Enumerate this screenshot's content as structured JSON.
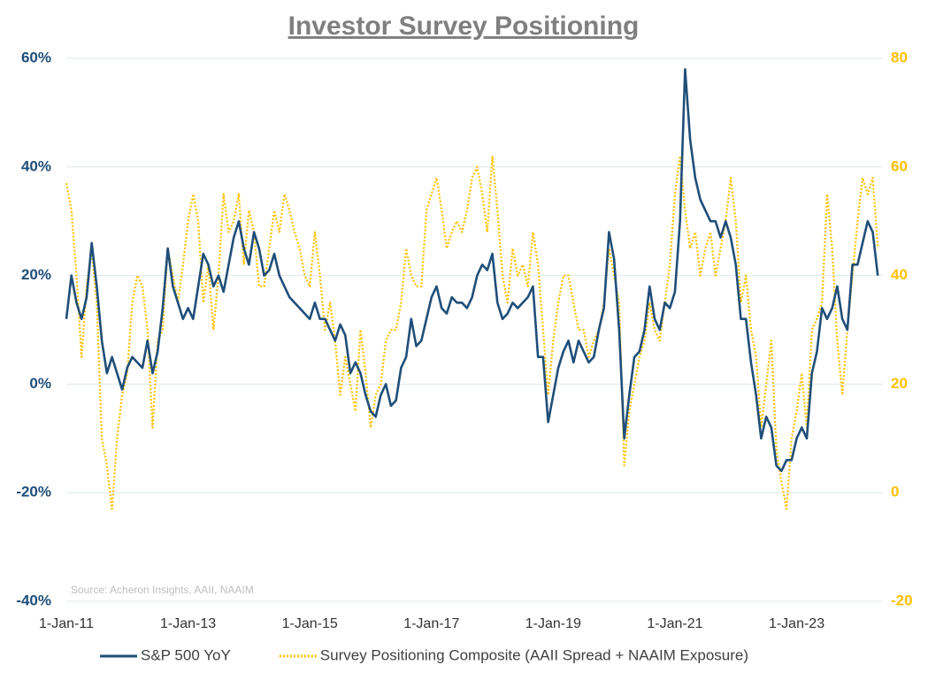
{
  "chart_data": {
    "type": "line",
    "title": "Investor Survey Positioning",
    "source": "Source: Acheron Insights, AAII, NAAIM",
    "x": [
      "2011-01-01",
      "2011-02-01",
      "2011-03-01",
      "2011-04-01",
      "2011-05-01",
      "2011-06-01",
      "2011-07-01",
      "2011-08-01",
      "2011-09-01",
      "2011-10-01",
      "2011-11-01",
      "2011-12-01",
      "2012-01-01",
      "2012-02-01",
      "2012-03-01",
      "2012-04-01",
      "2012-05-01",
      "2012-06-01",
      "2012-07-01",
      "2012-08-01",
      "2012-09-01",
      "2012-10-01",
      "2012-11-01",
      "2012-12-01",
      "2013-01-01",
      "2013-02-01",
      "2013-03-01",
      "2013-04-01",
      "2013-05-01",
      "2013-06-01",
      "2013-07-01",
      "2013-08-01",
      "2013-09-01",
      "2013-10-01",
      "2013-11-01",
      "2013-12-01",
      "2014-01-01",
      "2014-02-01",
      "2014-03-01",
      "2014-04-01",
      "2014-05-01",
      "2014-06-01",
      "2014-07-01",
      "2014-08-01",
      "2014-09-01",
      "2014-10-01",
      "2014-11-01",
      "2014-12-01",
      "2015-01-01",
      "2015-02-01",
      "2015-03-01",
      "2015-04-01",
      "2015-05-01",
      "2015-06-01",
      "2015-07-01",
      "2015-08-01",
      "2015-09-01",
      "2015-10-01",
      "2015-11-01",
      "2015-12-01",
      "2016-01-01",
      "2016-02-01",
      "2016-03-01",
      "2016-04-01",
      "2016-05-01",
      "2016-06-01",
      "2016-07-01",
      "2016-08-01",
      "2016-09-01",
      "2016-10-01",
      "2016-11-01",
      "2016-12-01",
      "2017-01-01",
      "2017-02-01",
      "2017-03-01",
      "2017-04-01",
      "2017-05-01",
      "2017-06-01",
      "2017-07-01",
      "2017-08-01",
      "2017-09-01",
      "2017-10-01",
      "2017-11-01",
      "2017-12-01",
      "2018-01-01",
      "2018-02-01",
      "2018-03-01",
      "2018-04-01",
      "2018-05-01",
      "2018-06-01",
      "2018-07-01",
      "2018-08-01",
      "2018-09-01",
      "2018-10-01",
      "2018-11-01",
      "2018-12-01",
      "2019-01-01",
      "2019-02-01",
      "2019-03-01",
      "2019-04-01",
      "2019-05-01",
      "2019-06-01",
      "2019-07-01",
      "2019-08-01",
      "2019-09-01",
      "2019-10-01",
      "2019-11-01",
      "2019-12-01",
      "2020-01-01",
      "2020-02-01",
      "2020-03-01",
      "2020-04-01",
      "2020-05-01",
      "2020-06-01",
      "2020-07-01",
      "2020-08-01",
      "2020-09-01",
      "2020-10-01",
      "2020-11-01",
      "2020-12-01",
      "2021-01-01",
      "2021-02-01",
      "2021-03-01",
      "2021-04-01",
      "2021-05-01",
      "2021-06-01",
      "2021-07-01",
      "2021-08-01",
      "2021-09-01",
      "2021-10-01",
      "2021-11-01",
      "2021-12-01",
      "2022-01-01",
      "2022-02-01",
      "2022-03-01",
      "2022-04-01",
      "2022-05-01",
      "2022-06-01",
      "2022-07-01",
      "2022-08-01",
      "2022-09-01",
      "2022-10-01",
      "2022-11-01",
      "2022-12-01",
      "2023-01-01",
      "2023-02-01",
      "2023-03-01",
      "2023-04-01",
      "2023-05-01",
      "2023-06-01",
      "2023-07-01",
      "2023-08-01",
      "2023-09-01",
      "2023-10-01",
      "2023-11-01",
      "2023-12-01",
      "2024-01-01",
      "2024-02-01",
      "2024-03-01",
      "2024-04-01",
      "2024-05-01"
    ],
    "xlim": [
      "2011-01-01",
      "2024-06-01"
    ],
    "xticks": [
      {
        "value": "2011-01-01",
        "label": "1-Jan-11"
      },
      {
        "value": "2013-01-01",
        "label": "1-Jan-13"
      },
      {
        "value": "2015-01-01",
        "label": "1-Jan-15"
      },
      {
        "value": "2017-01-01",
        "label": "1-Jan-17"
      },
      {
        "value": "2019-01-01",
        "label": "1-Jan-19"
      },
      {
        "value": "2021-01-01",
        "label": "1-Jan-21"
      },
      {
        "value": "2023-01-01",
        "label": "1-Jan-23"
      }
    ],
    "ylim": [
      -40,
      60
    ],
    "yticks": [
      {
        "value": -40,
        "label": "-40%"
      },
      {
        "value": -20,
        "label": "-20%"
      },
      {
        "value": 0,
        "label": "0%"
      },
      {
        "value": 20,
        "label": "20%"
      },
      {
        "value": 40,
        "label": "40%"
      },
      {
        "value": 60,
        "label": "60%"
      }
    ],
    "y2lim": [
      -20,
      80
    ],
    "y2ticks": [
      -20,
      0,
      20,
      40,
      60,
      80
    ],
    "grid": true,
    "series": [
      {
        "name": "S&P 500 YoY",
        "color": "#1f4e79",
        "style": "solid",
        "values": [
          12,
          20,
          15,
          12,
          16,
          26,
          18,
          8,
          2,
          5,
          2,
          -1,
          3,
          5,
          4,
          3,
          8,
          2,
          6,
          14,
          25,
          18,
          15,
          12,
          14,
          12,
          18,
          24,
          22,
          18,
          20,
          17,
          22,
          27,
          30,
          25,
          22,
          28,
          25,
          20,
          21,
          24,
          20,
          18,
          16,
          15,
          14,
          13,
          12,
          15,
          12,
          12,
          10,
          8,
          11,
          9,
          2,
          4,
          2,
          -2,
          -5,
          -6,
          -2,
          0,
          -4,
          -3,
          3,
          5,
          12,
          7,
          8,
          12,
          16,
          18,
          14,
          13,
          16,
          15,
          15,
          14,
          16,
          20,
          22,
          21,
          24,
          15,
          12,
          13,
          15,
          14,
          15,
          16,
          18,
          5,
          5,
          -7,
          -2,
          3,
          6,
          8,
          4,
          8,
          6,
          4,
          5,
          10,
          14,
          28,
          23,
          10,
          -10,
          -2,
          5,
          6,
          10,
          18,
          12,
          10,
          15,
          14,
          17,
          30,
          58,
          45,
          38,
          34,
          32,
          30,
          30,
          27,
          30,
          27,
          22,
          12,
          12,
          4,
          -2,
          -10,
          -6,
          -8,
          -15,
          -16,
          -14,
          -14,
          -10,
          -8,
          -10,
          2,
          6,
          14,
          12,
          14,
          18,
          12,
          10,
          22,
          22,
          26,
          30,
          28,
          20
        ]
      },
      {
        "name": "Survey Positioning Composite (AAII Spread + NAAIM Exposure)",
        "color": "#ffc000",
        "style": "dotted",
        "axis": "y2",
        "values": [
          57,
          52,
          40,
          25,
          38,
          45,
          35,
          10,
          5,
          -3,
          10,
          18,
          22,
          35,
          40,
          38,
          30,
          12,
          28,
          30,
          45,
          40,
          35,
          42,
          50,
          55,
          50,
          35,
          42,
          30,
          40,
          55,
          48,
          50,
          55,
          42,
          52,
          48,
          38,
          38,
          45,
          52,
          48,
          55,
          52,
          48,
          45,
          40,
          38,
          48,
          40,
          30,
          35,
          28,
          18,
          25,
          20,
          15,
          30,
          22,
          12,
          18,
          20,
          28,
          30,
          30,
          35,
          45,
          40,
          38,
          38,
          52,
          55,
          58,
          52,
          45,
          48,
          50,
          48,
          52,
          58,
          60,
          55,
          48,
          62,
          52,
          40,
          35,
          45,
          40,
          42,
          38,
          48,
          42,
          30,
          18,
          28,
          35,
          40,
          40,
          35,
          30,
          30,
          25,
          28,
          30,
          35,
          45,
          40,
          35,
          5,
          15,
          20,
          25,
          28,
          35,
          30,
          28,
          35,
          42,
          55,
          62,
          52,
          45,
          48,
          40,
          45,
          48,
          40,
          45,
          50,
          58,
          50,
          35,
          40,
          30,
          25,
          12,
          20,
          28,
          8,
          2,
          -3,
          10,
          15,
          22,
          12,
          30,
          32,
          35,
          55,
          45,
          28,
          18,
          30,
          40,
          50,
          58,
          55,
          58,
          45
        ]
      }
    ]
  }
}
